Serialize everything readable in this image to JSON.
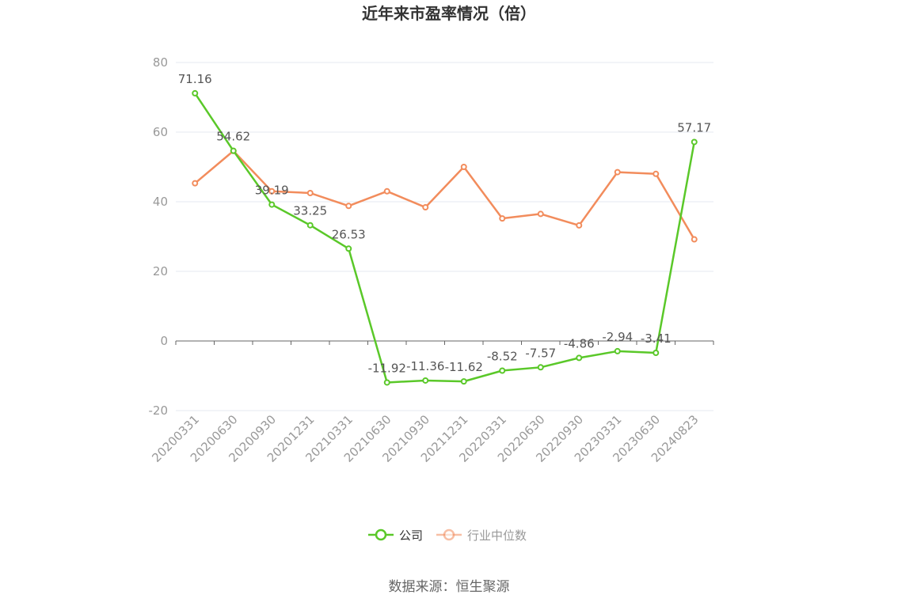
{
  "chart_data": {
    "type": "line",
    "title": "近年来市盈率情况（倍）",
    "categories": [
      "20200331",
      "20200630",
      "20200930",
      "20201231",
      "20210331",
      "20210630",
      "20210930",
      "20211231",
      "20220331",
      "20220630",
      "20220930",
      "20230331",
      "20230630",
      "20240823"
    ],
    "ylim": [
      -20,
      80
    ],
    "yticks": [
      -20,
      0,
      20,
      40,
      60,
      80
    ],
    "grid": true,
    "legend_position": "bottom-center",
    "series": [
      {
        "name": "公司",
        "color": "#5ac829",
        "values": [
          71.16,
          54.62,
          39.19,
          33.25,
          26.53,
          -11.92,
          -11.36,
          -11.62,
          -8.52,
          -7.57,
          -4.86,
          -2.94,
          -3.41,
          57.17
        ],
        "labels": [
          "71.16",
          "54.62",
          "39.19",
          "33.25",
          "26.53",
          "-11.92",
          "-11.36",
          "-11.62",
          "-8.52",
          "-7.57",
          "-4.86",
          "-2.94",
          "-3.41",
          "57.17"
        ]
      },
      {
        "name": "行业中位数",
        "color": "#f28c5c",
        "values": [
          45.3,
          54.6,
          43.0,
          42.5,
          38.8,
          43.0,
          38.4,
          50.0,
          35.2,
          36.5,
          33.2,
          48.5,
          48.0,
          29.2
        ]
      }
    ],
    "source": "数据来源：恒生聚源"
  },
  "colors": {
    "axis": "#666666",
    "grid": "#e6e8f0",
    "tick_text": "#999999",
    "label_text": "#555555",
    "legend_inactive": "#999999"
  }
}
